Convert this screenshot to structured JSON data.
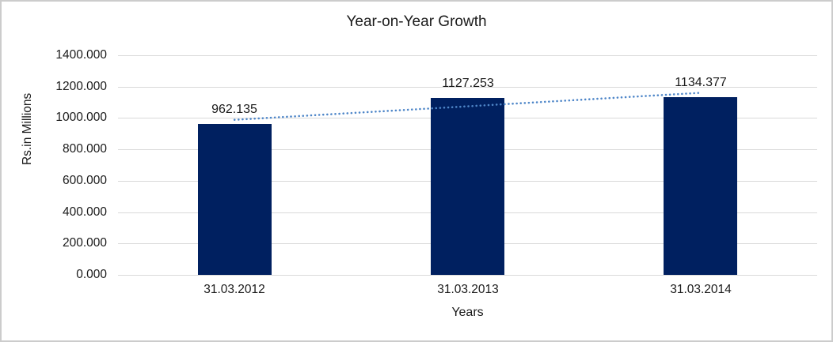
{
  "chart_data": {
    "type": "bar",
    "title": "Year-on-Year Growth",
    "xlabel": "Years",
    "ylabel": "Rs.in Millions",
    "categories": [
      "31.03.2012",
      "31.03.2013",
      "31.03.2014"
    ],
    "values": [
      962.135,
      1127.253,
      1134.377
    ],
    "data_labels": [
      "962.135",
      "1127.253",
      "1134.377"
    ],
    "ylim": [
      0,
      1400
    ],
    "ytick_labels": [
      "0.000",
      "200.000",
      "400.000",
      "600.000",
      "800.000",
      "1000.000",
      "1200.000",
      "1400.000"
    ],
    "ytick_values": [
      0,
      200,
      400,
      600,
      800,
      1000,
      1200,
      1400
    ],
    "grid": true,
    "legend": false,
    "colors": {
      "bar": "#002060",
      "trendline": "#4e86c8",
      "gridline": "#d9d9d9",
      "text": "#1a1a1a"
    },
    "trendline": {
      "type": "linear",
      "style": "dotted",
      "start_value": 988.5,
      "end_value": 1160.7
    }
  }
}
